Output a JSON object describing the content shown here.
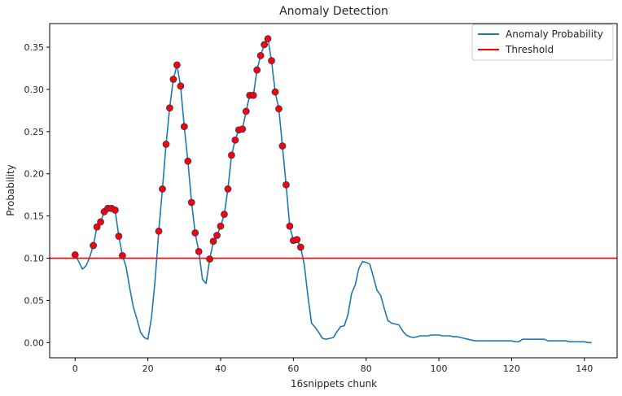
{
  "chart_data": {
    "type": "line",
    "title": "Anomaly Detection",
    "xlabel": "16snippets chunk",
    "ylabel": "Probability",
    "xlim": [
      -7,
      149
    ],
    "ylim": [
      -0.018,
      0.378
    ],
    "xticks": [
      0,
      20,
      40,
      60,
      80,
      100,
      120,
      140
    ],
    "yticks": [
      0.0,
      0.05,
      0.1,
      0.15,
      0.2,
      0.25,
      0.3,
      0.35
    ],
    "xtick_labels": [
      "0",
      "20",
      "40",
      "60",
      "80",
      "100",
      "120",
      "140"
    ],
    "ytick_labels": [
      "0.00",
      "0.05",
      "0.10",
      "0.15",
      "0.20",
      "0.25",
      "0.30",
      "0.35"
    ],
    "grid": false,
    "legend_position": "top-right",
    "series": [
      {
        "name": "Anomaly Probability",
        "color": "#1f77b4",
        "x": [
          0,
          1,
          2,
          3,
          4,
          5,
          6,
          7,
          8,
          9,
          10,
          11,
          12,
          13,
          14,
          15,
          16,
          17,
          18,
          19,
          20,
          21,
          22,
          23,
          24,
          25,
          26,
          27,
          28,
          29,
          30,
          31,
          32,
          33,
          34,
          35,
          36,
          37,
          38,
          39,
          40,
          41,
          42,
          43,
          44,
          45,
          46,
          47,
          48,
          49,
          50,
          51,
          52,
          53,
          54,
          55,
          56,
          57,
          58,
          59,
          60,
          61,
          62,
          63,
          64,
          65,
          66,
          67,
          68,
          69,
          70,
          71,
          72,
          73,
          74,
          75,
          76,
          77,
          78,
          79,
          80,
          81,
          82,
          83,
          84,
          85,
          86,
          87,
          88,
          89,
          90,
          91,
          92,
          93,
          94,
          95,
          96,
          97,
          98,
          99,
          100,
          101,
          102,
          103,
          104,
          105,
          106,
          107,
          108,
          109,
          110,
          111,
          112,
          113,
          114,
          115,
          116,
          117,
          118,
          119,
          120,
          121,
          122,
          123,
          124,
          125,
          126,
          127,
          128,
          129,
          130,
          131,
          132,
          133,
          134,
          135,
          136,
          137,
          138,
          139,
          140,
          141,
          142
        ],
        "values": [
          0.104,
          0.096,
          0.087,
          0.091,
          0.101,
          0.115,
          0.137,
          0.143,
          0.155,
          0.159,
          0.159,
          0.157,
          0.126,
          0.103,
          0.09,
          0.065,
          0.042,
          0.028,
          0.012,
          0.006,
          0.004,
          0.03,
          0.075,
          0.132,
          0.182,
          0.235,
          0.278,
          0.312,
          0.329,
          0.304,
          0.256,
          0.215,
          0.166,
          0.13,
          0.108,
          0.075,
          0.07,
          0.099,
          0.12,
          0.127,
          0.138,
          0.152,
          0.182,
          0.222,
          0.24,
          0.252,
          0.253,
          0.274,
          0.293,
          0.293,
          0.323,
          0.34,
          0.353,
          0.36,
          0.334,
          0.297,
          0.277,
          0.233,
          0.187,
          0.138,
          0.121,
          0.122,
          0.113,
          0.092,
          0.055,
          0.023,
          0.018,
          0.012,
          0.005,
          0.004,
          0.005,
          0.006,
          0.013,
          0.019,
          0.02,
          0.033,
          0.058,
          0.068,
          0.088,
          0.096,
          0.095,
          0.093,
          0.078,
          0.062,
          0.056,
          0.04,
          0.026,
          0.023,
          0.022,
          0.021,
          0.014,
          0.009,
          0.007,
          0.006,
          0.007,
          0.008,
          0.008,
          0.008,
          0.009,
          0.009,
          0.009,
          0.008,
          0.008,
          0.008,
          0.007,
          0.007,
          0.006,
          0.005,
          0.004,
          0.003,
          0.002,
          0.002,
          0.002,
          0.002,
          0.002,
          0.002,
          0.002,
          0.002,
          0.002,
          0.002,
          0.002,
          0.001,
          0.001,
          0.004,
          0.004,
          0.004,
          0.004,
          0.004,
          0.004,
          0.004,
          0.002,
          0.002,
          0.002,
          0.002,
          0.002,
          0.002,
          0.001,
          0.001,
          0.001,
          0.001,
          0.001,
          0.0,
          0.0
        ]
      },
      {
        "name": "Threshold",
        "color": "#ff0000",
        "type": "hline",
        "value": 0.1
      }
    ],
    "anomaly_points": {
      "color": "#ff0000",
      "edge_color": "#1f3b73",
      "x": [
        0,
        5,
        6,
        7,
        8,
        9,
        10,
        11,
        12,
        13,
        23,
        24,
        25,
        26,
        27,
        28,
        29,
        30,
        31,
        32,
        33,
        34,
        37,
        38,
        39,
        40,
        41,
        42,
        43,
        44,
        45,
        46,
        47,
        48,
        49,
        50,
        51,
        52,
        53,
        54,
        55,
        56,
        57,
        58,
        59,
        60,
        61,
        62
      ],
      "values": [
        0.104,
        0.115,
        0.137,
        0.143,
        0.155,
        0.159,
        0.159,
        0.157,
        0.126,
        0.103,
        0.132,
        0.182,
        0.235,
        0.278,
        0.312,
        0.329,
        0.304,
        0.256,
        0.215,
        0.166,
        0.13,
        0.108,
        0.099,
        0.12,
        0.127,
        0.138,
        0.152,
        0.182,
        0.222,
        0.24,
        0.252,
        0.253,
        0.274,
        0.293,
        0.293,
        0.323,
        0.34,
        0.353,
        0.36,
        0.334,
        0.297,
        0.277,
        0.233,
        0.187,
        0.138,
        0.121,
        0.122,
        0.113
      ]
    }
  }
}
